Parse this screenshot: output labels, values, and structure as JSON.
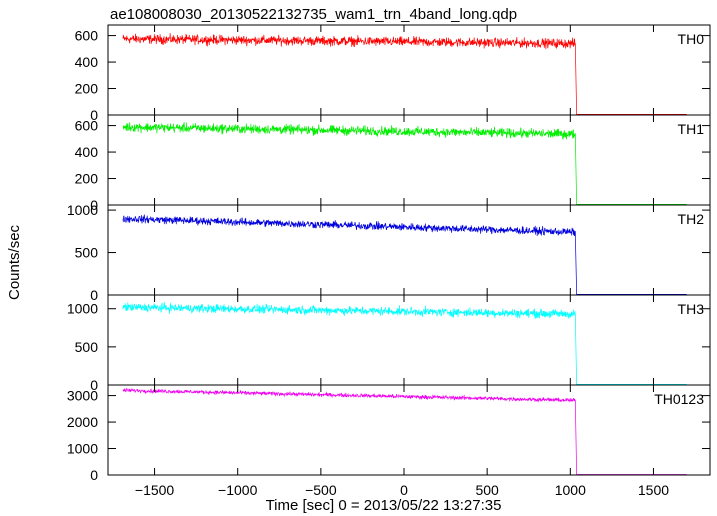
{
  "chart_data": {
    "type": "line",
    "title": "ae108008030_20130522132735_wam1_trn_4band_long.qdp",
    "xlabel": "Time [sec] 0 = 2013/05/22 13:27:35",
    "ylabel": "Counts/sec",
    "xlim": [
      -1780,
      1840
    ],
    "xticks": [
      -1500,
      -1000,
      -500,
      0,
      500,
      1000,
      1500
    ],
    "xtick_labels": [
      "−1500",
      "−1000",
      "−500",
      "0",
      "500",
      "1000",
      "1500"
    ],
    "x_start": -1690,
    "x_drop": 1030,
    "x_end": 1700,
    "grid": false,
    "panels": [
      {
        "name": "TH0",
        "color": "#ff0000",
        "ylim": [
          0,
          680
        ],
        "yticks": [
          0,
          200,
          400,
          600
        ],
        "ytick_labels": [
          "0",
          "200",
          "400",
          "600"
        ],
        "level_start": 575,
        "level_end": 540,
        "noise": 22,
        "after_drop": 5
      },
      {
        "name": "TH1",
        "color": "#00ee00",
        "ylim": [
          0,
          680
        ],
        "yticks": [
          0,
          200,
          400,
          600
        ],
        "ytick_labels": [
          "0",
          "200",
          "400",
          "600"
        ],
        "level_start": 590,
        "level_end": 535,
        "noise": 22,
        "after_drop": 5
      },
      {
        "name": "TH2",
        "color": "#0000dd",
        "ylim": [
          0,
          1060
        ],
        "yticks": [
          0,
          500,
          1000
        ],
        "ytick_labels": [
          "0",
          "500",
          "1000"
        ],
        "level_start": 900,
        "level_end": 740,
        "noise": 28,
        "after_drop": 8
      },
      {
        "name": "TH3",
        "color": "#00ffff",
        "ylim": [
          0,
          1180
        ],
        "yticks": [
          0,
          500,
          1000
        ],
        "ytick_labels": [
          "0",
          "500",
          "1000"
        ],
        "level_start": 1020,
        "level_end": 930,
        "noise": 35,
        "after_drop": 8
      },
      {
        "name": "TH0123",
        "color": "#ee00ee",
        "ylim": [
          0,
          3400
        ],
        "yticks": [
          0,
          1000,
          2000,
          3000
        ],
        "ytick_labels": [
          "0",
          "1000",
          "2000",
          "3000"
        ],
        "level_start": 3200,
        "level_end": 2820,
        "noise": 45,
        "after_drop": 20
      }
    ]
  }
}
